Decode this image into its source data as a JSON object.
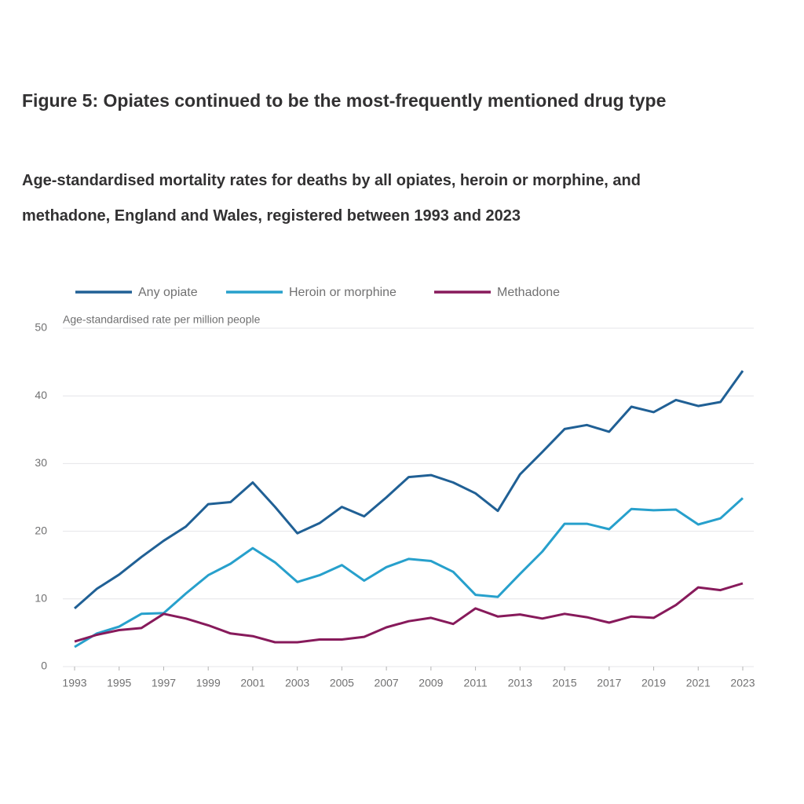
{
  "chart_data": {
    "type": "line",
    "title": "Figure 5: Opiates continued to be the most-frequently mentioned drug type",
    "subtitle": "Age-standardised mortality rates for deaths by all opiates, heroin or morphine, and methadone, England and Wales, registered between 1993 and 2023",
    "y_label": "Age-standardised rate per million people",
    "x": [
      1993,
      1994,
      1995,
      1996,
      1997,
      1998,
      1999,
      2000,
      2001,
      2002,
      2003,
      2004,
      2005,
      2006,
      2007,
      2008,
      2009,
      2010,
      2011,
      2012,
      2013,
      2014,
      2015,
      2016,
      2017,
      2018,
      2019,
      2020,
      2021,
      2022,
      2023
    ],
    "xlim": [
      1993,
      2023
    ],
    "xticks": [
      1993,
      1995,
      1997,
      1999,
      2001,
      2003,
      2005,
      2007,
      2009,
      2011,
      2013,
      2015,
      2017,
      2019,
      2021,
      2023
    ],
    "ylim": [
      0,
      50
    ],
    "yticks": [
      0,
      10,
      20,
      30,
      40,
      50
    ],
    "grid": true,
    "legend": "top",
    "series": [
      {
        "name": "Any opiate",
        "color": "#206095",
        "values": [
          8.6,
          11.5,
          13.6,
          16.2,
          18.6,
          20.7,
          24.0,
          24.3,
          27.2,
          23.6,
          19.7,
          21.2,
          23.6,
          22.2,
          25.0,
          28.0,
          28.3,
          27.2,
          25.6,
          23.0,
          28.4,
          31.7,
          35.1,
          35.7,
          34.7,
          38.4,
          37.6,
          39.4,
          38.5,
          39.1,
          43.7
        ]
      },
      {
        "name": "Heroin or morphine",
        "color": "#27a0cc",
        "values": [
          2.9,
          4.9,
          5.9,
          7.8,
          7.9,
          10.8,
          13.5,
          15.2,
          17.5,
          15.4,
          12.5,
          13.5,
          15.0,
          12.7,
          14.7,
          15.9,
          15.6,
          14.0,
          10.6,
          10.3,
          13.7,
          17.0,
          21.1,
          21.1,
          20.3,
          23.3,
          23.1,
          23.2,
          21.0,
          21.9,
          24.9
        ]
      },
      {
        "name": "Methadone",
        "color": "#871a5b",
        "values": [
          3.7,
          4.7,
          5.4,
          5.7,
          7.8,
          7.1,
          6.1,
          4.9,
          4.5,
          3.6,
          3.6,
          4.0,
          4.0,
          4.4,
          5.8,
          6.7,
          7.2,
          6.3,
          8.6,
          7.4,
          7.7,
          7.1,
          7.8,
          7.3,
          6.5,
          7.4,
          7.2,
          9.1,
          11.7,
          11.3,
          12.3
        ]
      }
    ]
  }
}
